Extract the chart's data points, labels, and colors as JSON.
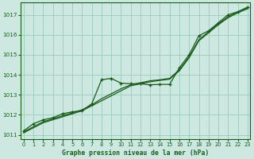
{
  "xlabel": "Graphe pression niveau de la mer (hPa)",
  "ylim": [
    1010.8,
    1017.6
  ],
  "xlim": [
    -0.3,
    23.3
  ],
  "yticks": [
    1011,
    1012,
    1013,
    1014,
    1015,
    1016,
    1017
  ],
  "xticks": [
    0,
    1,
    2,
    3,
    4,
    5,
    6,
    7,
    8,
    9,
    10,
    11,
    12,
    13,
    14,
    15,
    16,
    17,
    18,
    19,
    20,
    21,
    22,
    23
  ],
  "bg_color": "#cce8e0",
  "grid_color": "#99ccbb",
  "line_color": "#1a5c1a",
  "hours": [
    0,
    1,
    2,
    3,
    4,
    5,
    6,
    7,
    8,
    9,
    10,
    11,
    12,
    13,
    14,
    15,
    16,
    17,
    18,
    19,
    20,
    21,
    22,
    23
  ],
  "line1": [
    1011.1,
    1011.35,
    1011.6,
    1011.75,
    1011.9,
    1012.05,
    1012.2,
    1012.45,
    1012.7,
    1012.95,
    1013.2,
    1013.45,
    1013.55,
    1013.65,
    1013.72,
    1013.78,
    1014.2,
    1014.85,
    1015.7,
    1016.1,
    1016.5,
    1016.85,
    1017.1,
    1017.3
  ],
  "line2": [
    1011.15,
    1011.4,
    1011.65,
    1011.8,
    1011.95,
    1012.1,
    1012.25,
    1012.5,
    1012.8,
    1013.05,
    1013.3,
    1013.5,
    1013.6,
    1013.7,
    1013.75,
    1013.82,
    1014.25,
    1014.9,
    1015.75,
    1016.15,
    1016.55,
    1016.9,
    1017.15,
    1017.35
  ],
  "line_marked": [
    1011.2,
    1011.55,
    1011.75,
    1011.85,
    1012.05,
    1012.15,
    1012.2,
    1012.55,
    1013.75,
    1013.82,
    1013.58,
    1013.55,
    1013.55,
    1013.5,
    1013.52,
    1013.52,
    1014.35,
    1015.0,
    1015.95,
    1016.2,
    1016.6,
    1017.0,
    1017.15,
    1017.38
  ]
}
